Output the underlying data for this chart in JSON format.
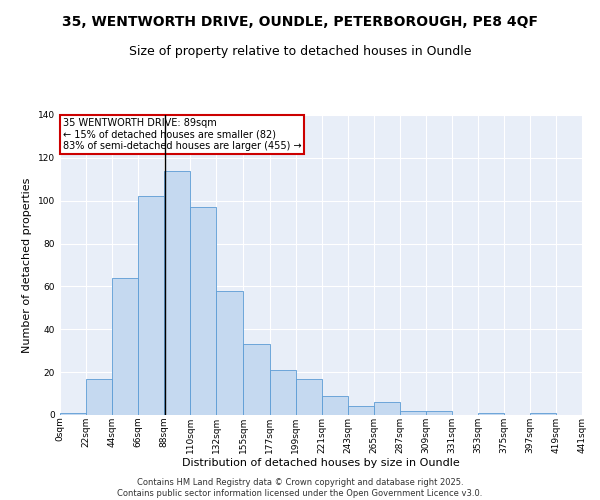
{
  "title_line1": "35, WENTWORTH DRIVE, OUNDLE, PETERBOROUGH, PE8 4QF",
  "title_line2": "Size of property relative to detached houses in Oundle",
  "xlabel": "Distribution of detached houses by size in Oundle",
  "ylabel": "Number of detached properties",
  "bin_edges": [
    0,
    22,
    44,
    66,
    88,
    110,
    132,
    155,
    177,
    199,
    221,
    243,
    265,
    287,
    309,
    331,
    353,
    375,
    397,
    419,
    441
  ],
  "bar_heights": [
    1,
    17,
    64,
    102,
    114,
    97,
    58,
    33,
    21,
    17,
    9,
    4,
    6,
    2,
    2,
    0,
    1,
    0,
    1,
    0
  ],
  "bar_color": "#c5d9f0",
  "bar_edge_color": "#5b9bd5",
  "vline_x": 89,
  "vline_color": "#000000",
  "annotation_text": "35 WENTWORTH DRIVE: 89sqm\n← 15% of detached houses are smaller (82)\n83% of semi-detached houses are larger (455) →",
  "annotation_box_color": "#ffffff",
  "annotation_box_edge": "#cc0000",
  "ylim": [
    0,
    140
  ],
  "yticks": [
    0,
    20,
    40,
    60,
    80,
    100,
    120,
    140
  ],
  "tick_labels": [
    "0sqm",
    "22sqm",
    "44sqm",
    "66sqm",
    "88sqm",
    "110sqm",
    "132sqm",
    "155sqm",
    "177sqm",
    "199sqm",
    "221sqm",
    "243sqm",
    "265sqm",
    "287sqm",
    "309sqm",
    "331sqm",
    "353sqm",
    "375sqm",
    "397sqm",
    "419sqm",
    "441sqm"
  ],
  "background_color": "#e8eef8",
  "grid_color": "#ffffff",
  "footer_text": "Contains HM Land Registry data © Crown copyright and database right 2025.\nContains public sector information licensed under the Open Government Licence v3.0.",
  "fig_background": "#ffffff",
  "title_fontsize": 10,
  "subtitle_fontsize": 9,
  "axis_label_fontsize": 8,
  "tick_fontsize": 6.5,
  "annotation_fontsize": 7,
  "footer_fontsize": 6
}
